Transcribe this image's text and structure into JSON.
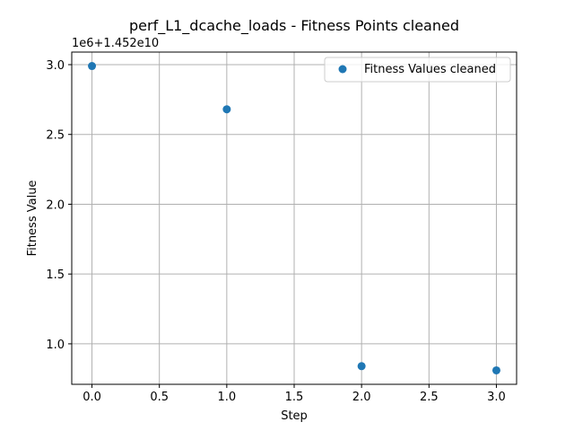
{
  "chart_data": {
    "type": "scatter",
    "title": "perf_L1_dcache_loads - Fitness Points cleaned",
    "xlabel": "Step",
    "ylabel": "Fitness Value",
    "y_offset_label": "1e6+1.452e10",
    "series": [
      {
        "name": "Fitness Values cleaned",
        "color": "#1f77b4",
        "x": [
          0,
          1,
          2,
          3
        ],
        "y": [
          2.99,
          2.68,
          0.84,
          0.81
        ]
      }
    ],
    "xlim": [
      -0.15,
      3.15
    ],
    "ylim": [
      0.71,
      3.09
    ],
    "xticks": [
      0.0,
      0.5,
      1.0,
      1.5,
      2.0,
      2.5,
      3.0
    ],
    "xtick_labels": [
      "0.0",
      "0.5",
      "1.0",
      "1.5",
      "2.0",
      "2.5",
      "3.0"
    ],
    "yticks": [
      1.0,
      1.5,
      2.0,
      2.5,
      3.0
    ],
    "ytick_labels": [
      "1.0",
      "1.5",
      "2.0",
      "2.5",
      "3.0"
    ],
    "grid": true,
    "legend_position": "top-right"
  }
}
